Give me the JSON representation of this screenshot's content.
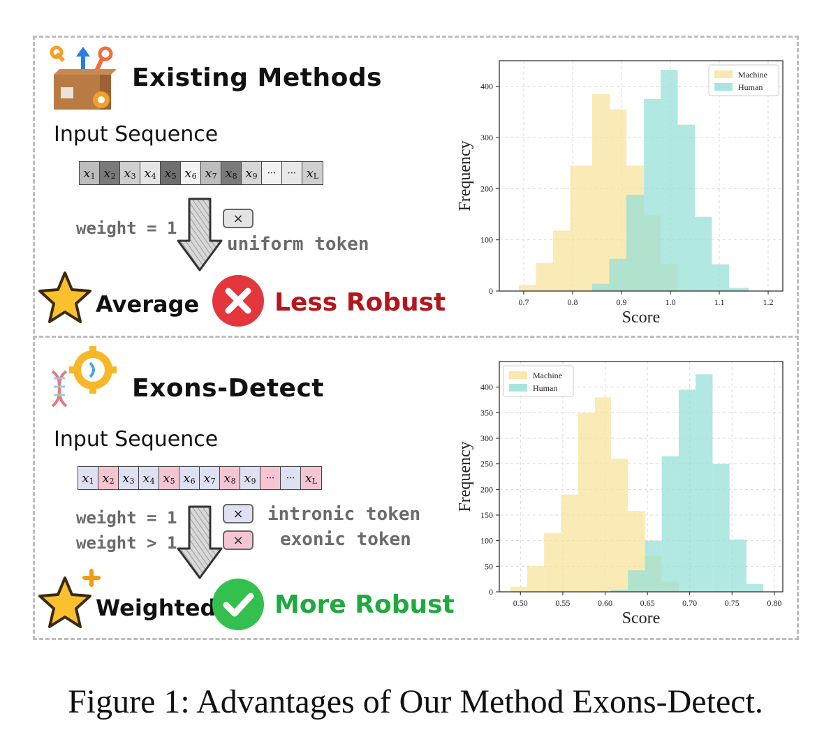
{
  "top": {
    "title": "Existing Methods",
    "input_label": "Input Sequence",
    "tokens": [
      {
        "base": "x",
        "sub": "1",
        "color": "#bdbdbd"
      },
      {
        "base": "x",
        "sub": "2",
        "color": "#7a7a7a"
      },
      {
        "base": "x",
        "sub": "3",
        "color": "#cfcfcf"
      },
      {
        "base": "x",
        "sub": "4",
        "color": "#e6e6e6"
      },
      {
        "base": "x",
        "sub": "5",
        "color": "#6f6f6f"
      },
      {
        "base": "x",
        "sub": "6",
        "color": "#f2f2f2"
      },
      {
        "base": "x",
        "sub": "7",
        "color": "#bdbdbd"
      },
      {
        "base": "x",
        "sub": "8",
        "color": "#7a7a7a"
      },
      {
        "base": "x",
        "sub": "9",
        "color": "#d6d6d6"
      },
      {
        "base": "···",
        "sub": "",
        "color": "#f2f2f2"
      },
      {
        "base": "···",
        "sub": "",
        "color": "#e8e8e8"
      },
      {
        "base": "x",
        "sub": "L",
        "color": "#cfcfcf"
      }
    ],
    "weight_label": "weight = 1",
    "token_desc": "uniform token",
    "token_box": "×",
    "result_label": "Average",
    "robust_label": "Less Robust",
    "robust_color": "#b3171c"
  },
  "bottom": {
    "title": "Exons-Detect",
    "input_label": "Input Sequence",
    "tokens": [
      {
        "base": "x",
        "sub": "1",
        "color": "#dde1f3"
      },
      {
        "base": "x",
        "sub": "2",
        "color": "#f5c5d2"
      },
      {
        "base": "x",
        "sub": "3",
        "color": "#dde1f3"
      },
      {
        "base": "x",
        "sub": "4",
        "color": "#dde1f3"
      },
      {
        "base": "x",
        "sub": "5",
        "color": "#f5c5d2"
      },
      {
        "base": "x",
        "sub": "6",
        "color": "#dde1f3"
      },
      {
        "base": "x",
        "sub": "7",
        "color": "#dde1f3"
      },
      {
        "base": "x",
        "sub": "8",
        "color": "#f5c5d2"
      },
      {
        "base": "x",
        "sub": "9",
        "color": "#dde1f3"
      },
      {
        "base": "···",
        "sub": "",
        "color": "#f5c5d2"
      },
      {
        "base": "···",
        "sub": "",
        "color": "#dde1f3"
      },
      {
        "base": "x",
        "sub": "L",
        "color": "#f5c5d2"
      }
    ],
    "weight_label_1": "weight = 1",
    "weight_label_2": "weight > 1",
    "token_desc_1": "intronic token",
    "token_desc_2": "exonic token",
    "token_box": "×",
    "result_label": "Weighted",
    "robust_label": "More Robust",
    "robust_color": "#1faa3f"
  },
  "caption": "Figure 1: Advantages of Our Method Exons-Detect.",
  "chart_data": [
    {
      "type": "histogram",
      "xlabel": "Score",
      "ylabel": "Frequency",
      "xlim": [
        0.65,
        1.23
      ],
      "ylim": [
        0,
        450
      ],
      "xticks": [
        "0.7",
        "0.8",
        "0.9",
        "1.0",
        "1.1",
        "1.2"
      ],
      "yticks": [
        "0",
        "100",
        "200",
        "300",
        "400"
      ],
      "legend_position": "top-right",
      "grid": true,
      "series": [
        {
          "name": "Machine",
          "color": "#f8e29a",
          "bins": [
            [
              0.69,
              0.725,
              12
            ],
            [
              0.725,
              0.76,
              55
            ],
            [
              0.76,
              0.795,
              118
            ],
            [
              0.795,
              0.84,
              245
            ],
            [
              0.84,
              0.876,
              385
            ],
            [
              0.876,
              0.91,
              355
            ],
            [
              0.91,
              0.946,
              245
            ],
            [
              0.946,
              0.98,
              148
            ],
            [
              0.98,
              1.015,
              53
            ],
            [
              1.015,
              1.05,
              3
            ]
          ]
        },
        {
          "name": "Human",
          "color": "#93dfd6",
          "bins": [
            [
              0.84,
              0.875,
              14
            ],
            [
              0.875,
              0.91,
              63
            ],
            [
              0.91,
              0.946,
              188
            ],
            [
              0.946,
              0.98,
              375
            ],
            [
              0.98,
              1.015,
              432
            ],
            [
              1.015,
              1.05,
              325
            ],
            [
              1.05,
              1.085,
              145
            ],
            [
              1.085,
              1.12,
              52
            ],
            [
              1.12,
              1.16,
              6
            ]
          ]
        }
      ]
    },
    {
      "type": "histogram",
      "xlabel": "Score",
      "ylabel": "Frequency",
      "xlim": [
        0.475,
        0.81
      ],
      "ylim": [
        0,
        450
      ],
      "xticks": [
        "0.50",
        "0.55",
        "0.60",
        "0.65",
        "0.70",
        "0.75",
        "0.80"
      ],
      "yticks": [
        "0",
        "50",
        "100",
        "150",
        "200",
        "250",
        "300",
        "350",
        "400"
      ],
      "legend_position": "top-left",
      "grid": true,
      "series": [
        {
          "name": "Machine",
          "color": "#f8e29a",
          "bins": [
            [
              0.488,
              0.508,
              10
            ],
            [
              0.508,
              0.528,
              50
            ],
            [
              0.528,
              0.548,
              115
            ],
            [
              0.548,
              0.568,
              190
            ],
            [
              0.568,
              0.588,
              350
            ],
            [
              0.588,
              0.607,
              380
            ],
            [
              0.607,
              0.627,
              260
            ],
            [
              0.627,
              0.647,
              158
            ],
            [
              0.647,
              0.667,
              70
            ],
            [
              0.667,
              0.687,
              20
            ]
          ]
        },
        {
          "name": "Human",
          "color": "#93dfd6",
          "bins": [
            [
              0.607,
              0.627,
              4
            ],
            [
              0.627,
              0.647,
              42
            ],
            [
              0.647,
              0.667,
              100
            ],
            [
              0.667,
              0.687,
              265
            ],
            [
              0.687,
              0.707,
              395
            ],
            [
              0.707,
              0.727,
              425
            ],
            [
              0.727,
              0.747,
              250
            ],
            [
              0.747,
              0.767,
              102
            ],
            [
              0.767,
              0.787,
              15
            ]
          ]
        }
      ]
    }
  ]
}
